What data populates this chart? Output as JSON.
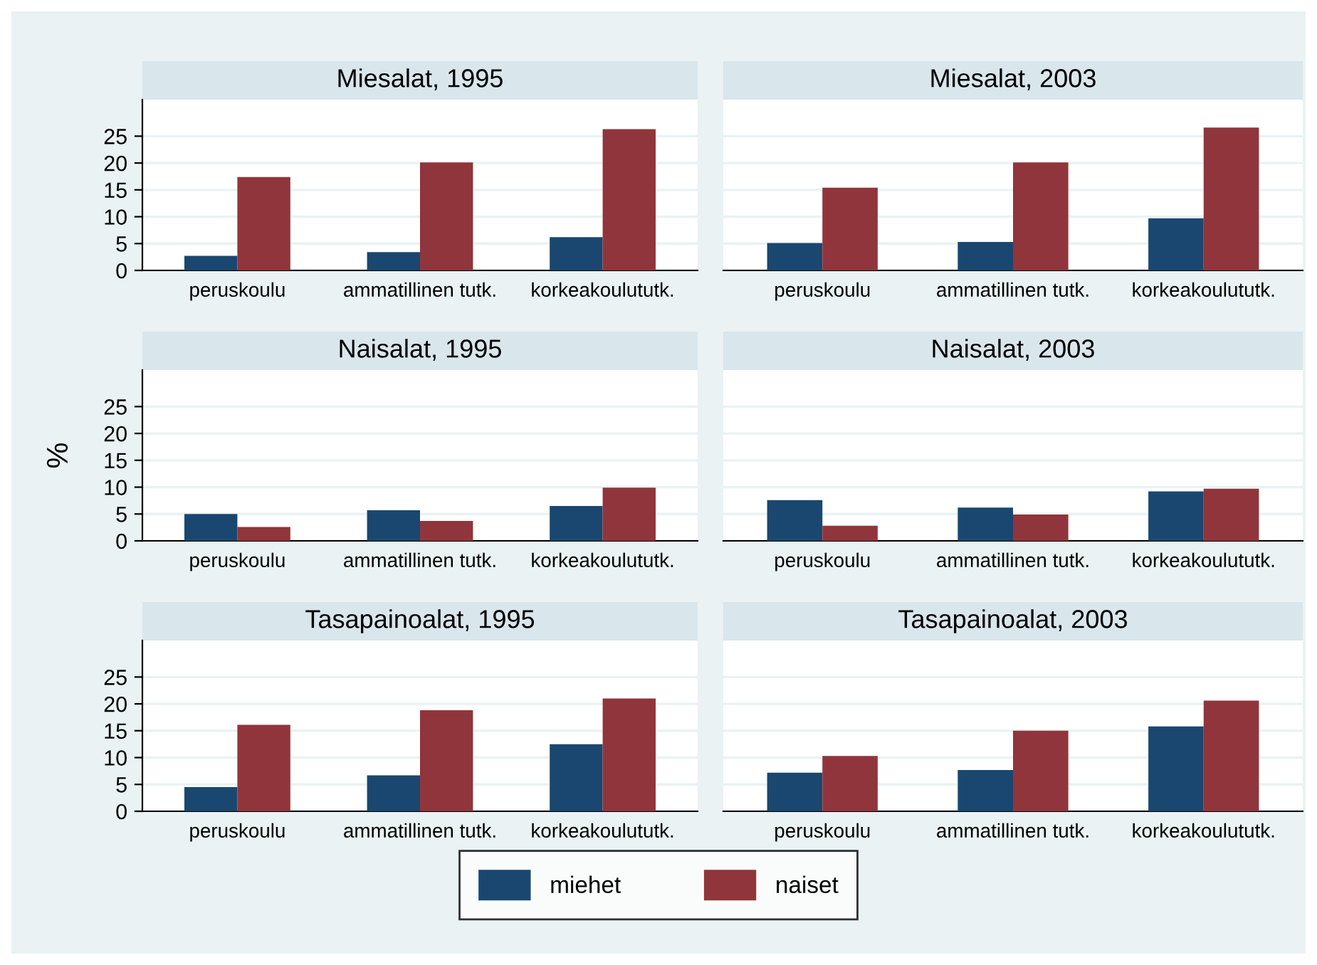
{
  "chart_data": [
    {
      "type": "bar",
      "title": "Miesalat, 1995",
      "categories": [
        "peruskoulu",
        "ammatillinen tutk.",
        "korkeakoulututk."
      ],
      "ylim": [
        0,
        31.8
      ],
      "yticks": [
        0,
        5,
        10,
        15,
        20,
        25
      ],
      "grid": "y",
      "series": [
        {
          "color": "#1a476f",
          "values": [
            2.7,
            3.4,
            6.2
          ]
        },
        {
          "color": "#90353b",
          "values": [
            17.4,
            20.1,
            26.3
          ]
        }
      ]
    },
    {
      "type": "bar",
      "title": "Miesalat, 2003",
      "categories": [
        "peruskoulu",
        "ammatillinen tutk.",
        "korkeakoulututk."
      ],
      "ylim": [
        0,
        31.8
      ],
      "yticks": [
        0,
        5,
        10,
        15,
        20,
        25
      ],
      "grid": "y",
      "tick_labels": "x",
      "series": [
        {
          "color": "#1a476f",
          "values": [
            5.1,
            5.3,
            9.7
          ]
        },
        {
          "color": "#90353b",
          "values": [
            15.4,
            20.1,
            26.6
          ]
        }
      ]
    },
    {
      "type": "bar",
      "title": "Naisalat, 1995",
      "ylabel": "%",
      "categories": [
        "peruskoulu",
        "ammatillinen tutk.",
        "korkeakoulututk."
      ],
      "ylim": [
        0,
        31.8
      ],
      "yticks": [
        0,
        5,
        10,
        15,
        20,
        25
      ],
      "grid": "y",
      "series": [
        {
          "color": "#1a476f",
          "values": [
            5.0,
            5.7,
            6.5
          ]
        },
        {
          "color": "#90353b",
          "values": [
            2.6,
            3.7,
            9.9
          ]
        }
      ]
    },
    {
      "type": "bar",
      "title": "Naisalat, 2003",
      "categories": [
        "peruskoulu",
        "ammatillinen tutk.",
        "korkeakoulututk."
      ],
      "ylim": [
        0,
        31.8
      ],
      "yticks": [
        0,
        5,
        10,
        15,
        20,
        25
      ],
      "grid": "y",
      "tick_labels": "x",
      "series": [
        {
          "color": "#1a476f",
          "values": [
            7.6,
            6.2,
            9.2
          ]
        },
        {
          "color": "#90353b",
          "values": [
            2.8,
            4.9,
            9.7
          ]
        }
      ]
    },
    {
      "type": "bar",
      "title": "Tasapainoalat, 1995",
      "categories": [
        "peruskoulu",
        "ammatillinen tutk.",
        "korkeakoulututk."
      ],
      "ylim": [
        0,
        31.8
      ],
      "yticks": [
        0,
        5,
        10,
        15,
        20,
        25
      ],
      "grid": "y",
      "series": [
        {
          "color": "#1a476f",
          "values": [
            4.5,
            6.7,
            12.5
          ]
        },
        {
          "color": "#90353b",
          "values": [
            16.1,
            18.8,
            21.0
          ]
        }
      ]
    },
    {
      "type": "bar",
      "title": "Tasapainoalat, 2003",
      "categories": [
        "peruskoulu",
        "ammatillinen tutk.",
        "korkeakoulututk."
      ],
      "ylim": [
        0,
        31.8
      ],
      "yticks": [
        0,
        5,
        10,
        15,
        20,
        25
      ],
      "grid": "y",
      "tick_labels": "x",
      "legend": "bottom",
      "series": [
        {
          "name": "miehet",
          "color": "#1a476f",
          "values": [
            7.2,
            7.7,
            15.8
          ]
        },
        {
          "name": "naiset",
          "color": "#90353b",
          "values": [
            10.3,
            15.0,
            20.6
          ]
        }
      ]
    }
  ]
}
